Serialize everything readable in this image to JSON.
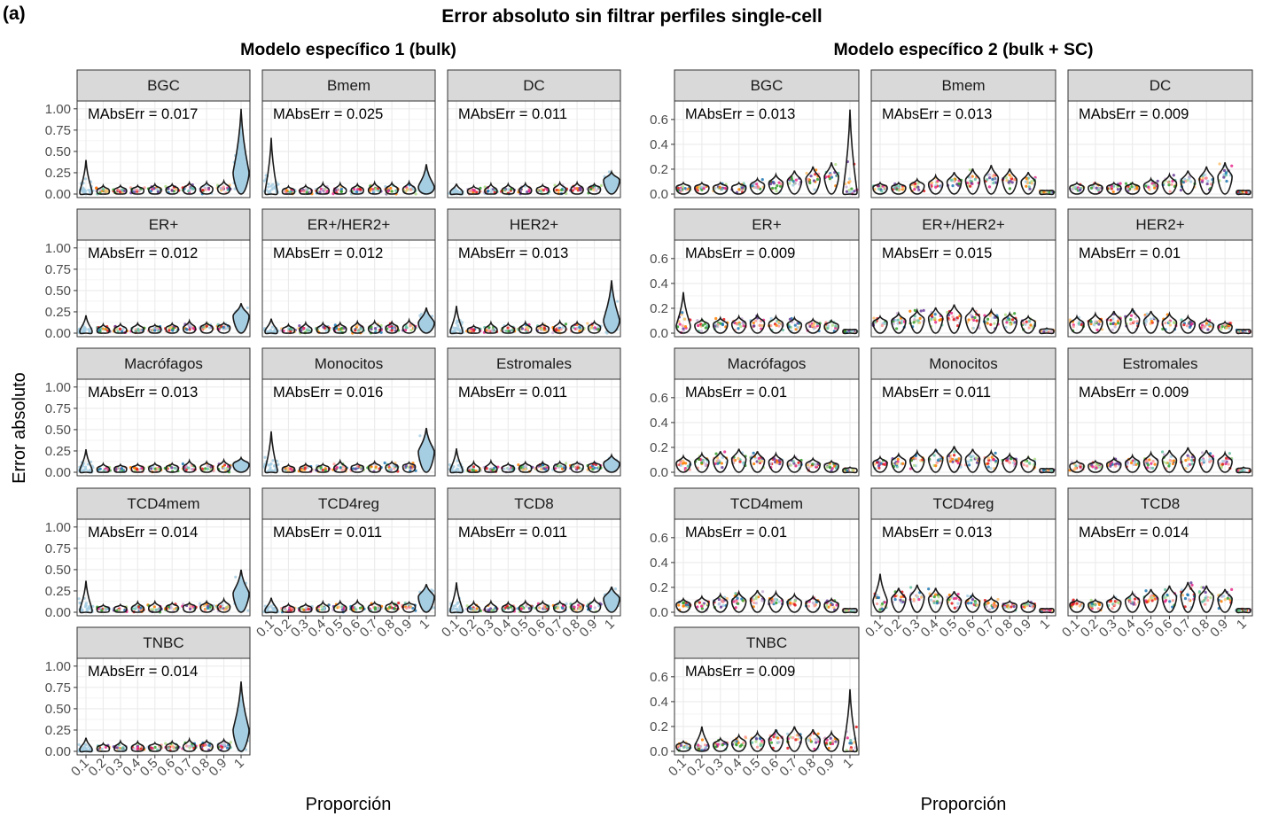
{
  "figure": {
    "panel_tag": "(a)",
    "title": "Error absoluto sin filtrar perfiles single-cell",
    "ylabel": "Error absoluto",
    "xlabel": "Proporción"
  },
  "chart_data": [
    {
      "type": "violin",
      "subtitle": "Modelo específico 1 (bulk)",
      "x_categories": [
        "0.1",
        "0.2",
        "0.3",
        "0.4",
        "0.5",
        "0.6",
        "0.7",
        "0.8",
        "0.9",
        "1"
      ],
      "ylim": [
        0,
        1.05
      ],
      "yticks": [
        "0.00",
        "0.25",
        "0.50",
        "0.75",
        "1.00"
      ],
      "ytick_values": [
        0,
        0.25,
        0.5,
        0.75,
        1.0
      ],
      "grid": true,
      "facets": [
        {
          "cell_type": "BGC",
          "mae": "MAbsErr = 0.017",
          "p10_max": 0.4,
          "p10_spread": 0.25,
          "p100_max": 1.0,
          "p100_med": 0.25,
          "trend": 0.07
        },
        {
          "cell_type": "Bmem",
          "mae": "MAbsErr = 0.025",
          "p10_max": 0.66,
          "p10_spread": 0.5,
          "p100_max": 0.35,
          "p100_med": 0.08,
          "trend": 0.05
        },
        {
          "cell_type": "DC",
          "mae": "MAbsErr = 0.011",
          "p10_max": 0.12,
          "p10_spread": 0.1,
          "p100_max": 0.26,
          "p100_med": 0.16,
          "trend": 0.06
        },
        {
          "cell_type": "ER+",
          "mae": "MAbsErr = 0.012",
          "p10_max": 0.21,
          "p10_spread": 0.12,
          "p100_max": 0.35,
          "p100_med": 0.2,
          "trend": 0.07
        },
        {
          "cell_type": "ER+/HER2+",
          "mae": "MAbsErr = 0.012",
          "p10_max": 0.17,
          "p10_spread": 0.12,
          "p100_max": 0.3,
          "p100_med": 0.12,
          "trend": 0.07
        },
        {
          "cell_type": "HER2+",
          "mae": "MAbsErr = 0.013",
          "p10_max": 0.32,
          "p10_spread": 0.12,
          "p100_max": 0.62,
          "p100_med": 0.15,
          "trend": 0.07
        },
        {
          "cell_type": "Macrófagos",
          "mae": "MAbsErr = 0.013",
          "p10_max": 0.27,
          "p10_spread": 0.25,
          "p100_max": 0.17,
          "p100_med": 0.09,
          "trend": 0.06
        },
        {
          "cell_type": "Monocitos",
          "mae": "MAbsErr = 0.016",
          "p10_max": 0.48,
          "p10_spread": 0.12,
          "p100_max": 0.52,
          "p100_med": 0.24,
          "trend": 0.07
        },
        {
          "cell_type": "Estromales",
          "mae": "MAbsErr = 0.011",
          "p10_max": 0.28,
          "p10_spread": 0.12,
          "p100_max": 0.2,
          "p100_med": 0.1,
          "trend": 0.08
        },
        {
          "cell_type": "TCD4mem",
          "mae": "MAbsErr = 0.014",
          "p10_max": 0.37,
          "p10_spread": 0.2,
          "p100_max": 0.5,
          "p100_med": 0.22,
          "trend": 0.07
        },
        {
          "cell_type": "TCD4reg",
          "mae": "MAbsErr = 0.011",
          "p10_max": 0.17,
          "p10_spread": 0.12,
          "p100_max": 0.33,
          "p100_med": 0.18,
          "trend": 0.07
        },
        {
          "cell_type": "TCD8",
          "mae": "MAbsErr = 0.011",
          "p10_max": 0.35,
          "p10_spread": 0.15,
          "p100_max": 0.3,
          "p100_med": 0.16,
          "trend": 0.08
        },
        {
          "cell_type": "TNBC",
          "mae": "MAbsErr = 0.014",
          "p10_max": 0.16,
          "p10_spread": 0.12,
          "p100_max": 0.82,
          "p100_med": 0.25,
          "trend": 0.07
        }
      ]
    },
    {
      "type": "violin",
      "subtitle": "Modelo específico 2 (bulk + SC)",
      "x_categories": [
        "0.1",
        "0.2",
        "0.3",
        "0.4",
        "0.5",
        "0.6",
        "0.7",
        "0.8",
        "0.9",
        "1"
      ],
      "ylim": [
        0,
        0.72
      ],
      "yticks": [
        "0.0",
        "0.2",
        "0.4",
        "0.6"
      ],
      "ytick_values": [
        0,
        0.2,
        0.4,
        0.6
      ],
      "grid": true,
      "facets": [
        {
          "cell_type": "BGC",
          "mae": "MAbsErr = 0.013",
          "peak_x": 8,
          "peak": 0.2,
          "p100_max": 0.68,
          "level": 0.05
        },
        {
          "cell_type": "Bmem",
          "mae": "MAbsErr = 0.013",
          "peak_x": 6,
          "peak": 0.18,
          "p100_max": 0.03,
          "level": 0.05
        },
        {
          "cell_type": "DC",
          "mae": "MAbsErr = 0.009",
          "peak_x": 8,
          "peak": 0.2,
          "p100_max": 0.03,
          "level": 0.05
        },
        {
          "cell_type": "ER+",
          "mae": "MAbsErr = 0.009",
          "peak_x": 4,
          "peak": 0.1,
          "p100_max": 0.03,
          "level": 0.05,
          "spike_x": 0,
          "spike": 0.33
        },
        {
          "cell_type": "ER+/HER2+",
          "mae": "MAbsErr = 0.015",
          "peak_x": 4,
          "peak": 0.18,
          "p100_max": 0.04,
          "level": 0.07
        },
        {
          "cell_type": "HER2+",
          "mae": "MAbsErr = 0.01",
          "peak_x": 3,
          "peak": 0.15,
          "p100_max": 0.03,
          "level": 0.05
        },
        {
          "cell_type": "Macrófagos",
          "mae": "MAbsErr = 0.01",
          "peak_x": 3,
          "peak": 0.14,
          "p100_max": 0.04,
          "level": 0.05
        },
        {
          "cell_type": "Monocitos",
          "mae": "MAbsErr = 0.011",
          "peak_x": 4,
          "peak": 0.16,
          "p100_max": 0.03,
          "level": 0.06
        },
        {
          "cell_type": "Estromales",
          "mae": "MAbsErr = 0.009",
          "peak_x": 6,
          "peak": 0.15,
          "p100_max": 0.04,
          "level": 0.05
        },
        {
          "cell_type": "TCD4mem",
          "mae": "MAbsErr = 0.01",
          "peak_x": 4,
          "peak": 0.13,
          "p100_max": 0.03,
          "level": 0.05
        },
        {
          "cell_type": "TCD4reg",
          "mae": "MAbsErr = 0.013",
          "peak_x": 2,
          "peak": 0.17,
          "p100_max": 0.03,
          "level": 0.05,
          "spike_x": 0,
          "spike": 0.31
        },
        {
          "cell_type": "TCD8",
          "mae": "MAbsErr = 0.014",
          "peak_x": 6,
          "peak": 0.19,
          "p100_max": 0.03,
          "level": 0.06
        },
        {
          "cell_type": "TNBC",
          "mae": "MAbsErr = 0.009",
          "peak_x": 6,
          "peak": 0.15,
          "p100_max": 0.5,
          "level": 0.04,
          "spike_x": 1,
          "spike": 0.2
        }
      ]
    }
  ],
  "colors": {
    "strip_fill": "#d9d9d9",
    "panel_border": "#333333",
    "grid": "#ebebeb",
    "violin_fill": "#a6cee3",
    "violin_stroke": "#1a1a1a",
    "point_palette": [
      "#a6cee3",
      "#1f78b4",
      "#b2df8a",
      "#33a02c",
      "#fb9a99",
      "#e31a1c",
      "#fdbf6f",
      "#ff7f00",
      "#cab2d6",
      "#6a3d9a",
      "#e7298a",
      "#66c2a5"
    ]
  }
}
